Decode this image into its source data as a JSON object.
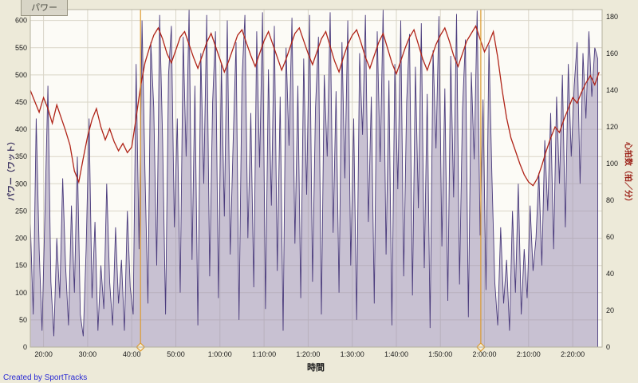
{
  "tab": {
    "label": "パワー"
  },
  "footer": {
    "credit": "Created by SportTracks"
  },
  "colors": {
    "background": "#edead9",
    "plot_background": "#fcfbf6",
    "grid": "#d9d5c7",
    "power_stroke": "#4a3b7c",
    "power_fill": "rgba(156,146,180,0.55)",
    "heart_rate": "#b02418",
    "marker": "#dd9b2f",
    "axis_border": "#b5b19f",
    "tick_text": "#1a1a1a"
  },
  "chart_data": {
    "type": "line",
    "title": "パワー",
    "xlabel": "時間",
    "ylabel_left": "パワー（ワット）",
    "ylabel_right": "心拍数（拍／分）",
    "grid": true,
    "x_range_seconds": [
      1020,
      8800
    ],
    "x_ticks": [
      {
        "t": 1200,
        "label": "20:00"
      },
      {
        "t": 1800,
        "label": "30:00"
      },
      {
        "t": 2400,
        "label": "40:00"
      },
      {
        "t": 3000,
        "label": "50:00"
      },
      {
        "t": 3600,
        "label": "1:00:00"
      },
      {
        "t": 4200,
        "label": "1:10:00"
      },
      {
        "t": 4800,
        "label": "1:20:00"
      },
      {
        "t": 5400,
        "label": "1:30:00"
      },
      {
        "t": 6000,
        "label": "1:40:00"
      },
      {
        "t": 6600,
        "label": "1:50:00"
      },
      {
        "t": 7200,
        "label": "2:00:00"
      },
      {
        "t": 7800,
        "label": "2:10:00"
      },
      {
        "t": 8400,
        "label": "2:20:00"
      }
    ],
    "y_left": {
      "min": 0,
      "max": 620,
      "ticks": [
        0,
        50,
        100,
        150,
        200,
        250,
        300,
        350,
        400,
        450,
        500,
        550,
        600
      ]
    },
    "y_right": {
      "min": 0,
      "max": 184,
      "ticks": [
        0,
        20,
        40,
        60,
        80,
        100,
        120,
        140,
        160,
        180
      ]
    },
    "markers": [
      {
        "t": 2520
      },
      {
        "t": 7150
      }
    ],
    "series": [
      {
        "name": "power",
        "unit": "watts",
        "axis": "left",
        "style": "area",
        "t0": 1020,
        "dt": 40,
        "values": [
          230,
          60,
          420,
          180,
          30,
          250,
          480,
          120,
          20,
          200,
          90,
          310,
          150,
          40,
          260,
          100,
          350,
          60,
          20,
          180,
          420,
          90,
          230,
          30,
          150,
          70,
          300,
          120,
          40,
          220,
          80,
          160,
          30,
          250,
          110,
          60,
          520,
          180,
          600,
          320,
          80,
          560,
          440,
          150,
          610,
          380,
          60,
          500,
          590,
          220,
          420,
          100,
          570,
          350,
          620,
          160,
          480,
          40,
          540,
          300,
          610,
          130,
          450,
          580,
          90,
          520,
          240,
          600,
          170,
          380,
          560,
          50,
          490,
          610,
          200,
          430,
          110,
          580,
          330,
          615,
          70,
          510,
          260,
          590,
          140,
          460,
          30,
          550,
          370,
          605,
          190,
          480,
          90,
          530,
          280,
          610,
          120,
          440,
          570,
          60,
          500,
          350,
          615,
          210,
          470,
          100,
          560,
          310,
          600,
          150,
          420,
          50,
          540,
          390,
          610,
          230,
          460,
          80,
          580,
          340,
          620,
          170,
          490,
          40,
          520,
          290,
          600,
          130,
          450,
          575,
          95,
          515,
          255,
          595,
          145,
          465,
          35,
          545,
          365,
          608,
          185,
          475,
          85,
          535,
          275,
          612,
          115,
          435,
          565,
          55,
          505,
          345,
          618,
          205,
          455,
          105,
          555,
          315,
          120,
          40,
          220,
          80,
          160,
          30,
          250,
          100,
          300,
          60,
          180,
          90,
          260,
          140,
          200,
          320,
          150,
          380,
          250,
          430,
          180,
          460,
          300,
          500,
          220,
          520,
          350,
          480,
          560,
          300,
          540,
          420,
          580,
          460,
          550,
          530
        ]
      },
      {
        "name": "heart_rate",
        "unit": "bpm",
        "axis": "right",
        "style": "line",
        "t0": 1020,
        "dt": 60,
        "values": [
          140,
          134,
          128,
          136,
          130,
          122,
          132,
          125,
          118,
          110,
          96,
          90,
          103,
          115,
          124,
          130,
          120,
          113,
          119,
          112,
          107,
          111,
          106,
          109,
          125,
          142,
          155,
          163,
          170,
          174,
          168,
          160,
          155,
          162,
          169,
          172,
          165,
          158,
          152,
          159,
          166,
          171,
          164,
          157,
          150,
          156,
          163,
          170,
          173,
          166,
          159,
          153,
          160,
          167,
          172,
          165,
          158,
          151,
          157,
          164,
          171,
          174,
          167,
          160,
          154,
          161,
          168,
          172,
          164,
          156,
          150,
          158,
          165,
          170,
          173,
          166,
          158,
          152,
          159,
          166,
          171,
          163,
          155,
          149,
          156,
          163,
          169,
          173,
          165,
          157,
          151,
          158,
          165,
          170,
          174,
          167,
          159,
          153,
          160,
          167,
          171,
          175,
          168,
          161,
          166,
          172,
          158,
          140,
          125,
          114,
          107,
          100,
          94,
          90,
          88,
          92,
          99,
          107,
          114,
          120,
          117,
          124,
          130,
          136,
          133,
          139,
          144,
          148,
          143,
          150
        ]
      }
    ]
  }
}
